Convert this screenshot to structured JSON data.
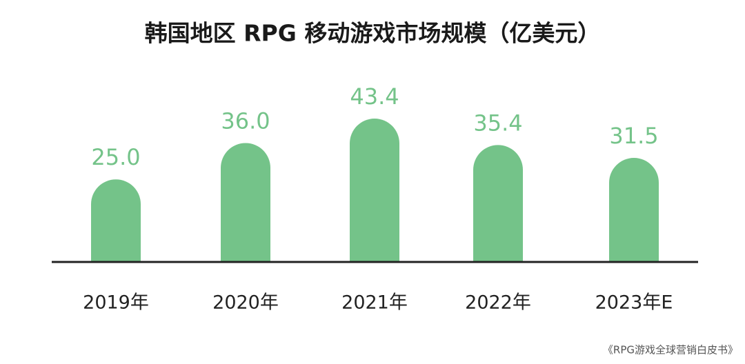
{
  "chart_data": {
    "type": "bar",
    "title": "韩国地区 RPG 移动游戏市场规模（亿美元）",
    "categories": [
      "2019年",
      "2020年",
      "2021年",
      "2022年",
      "2023年E"
    ],
    "values": [
      25,
      36,
      43.4,
      35.4,
      31.5
    ],
    "value_labels": [
      "25.0",
      "36.0",
      "43.4",
      "35.4",
      "31.5"
    ],
    "color": "#74c389",
    "source": "《RPG游戏全球营销白皮书》"
  }
}
